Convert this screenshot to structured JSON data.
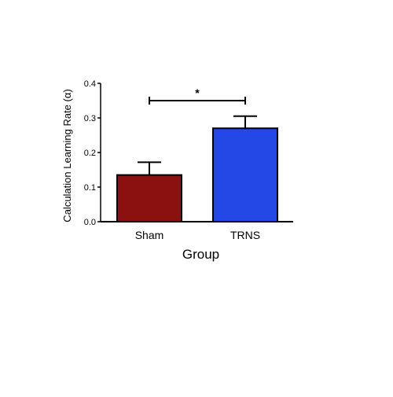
{
  "chart_data": {
    "type": "bar",
    "categories": [
      "Sham",
      "TRNS"
    ],
    "values": [
      0.135,
      0.27
    ],
    "errors": [
      0.037,
      0.035
    ],
    "colors": [
      "#8B1010",
      "#2448E6"
    ],
    "xlabel": "Group",
    "ylabel": "Calculation Learning Rate (α)",
    "ylim": [
      0,
      0.4
    ],
    "yticks": [
      "0.0",
      "0.1",
      "0.2",
      "0.3",
      "0.4"
    ],
    "ytick_values": [
      0,
      0.1,
      0.2,
      0.3,
      0.4
    ],
    "grid": false,
    "annotations": [
      {
        "text": "*",
        "from_category": "Sham",
        "to_category": "TRNS",
        "y": 0.35
      }
    ]
  }
}
